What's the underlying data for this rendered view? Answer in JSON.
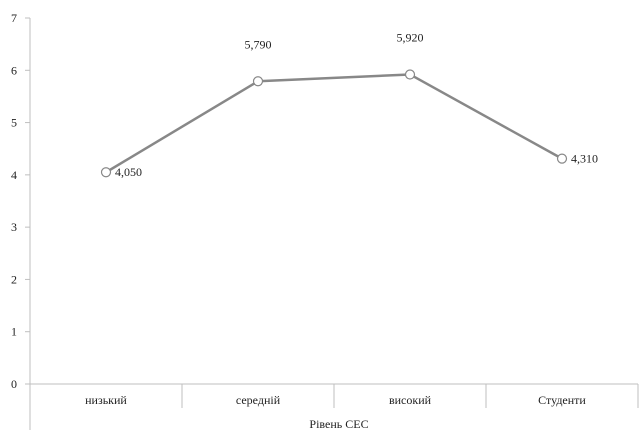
{
  "chart_data": {
    "type": "line",
    "categories": [
      "низький",
      "середній",
      "високий",
      "Студенти"
    ],
    "series": [
      {
        "values": [
          4.05,
          5.79,
          5.92,
          4.31
        ],
        "data_labels": [
          "4,050",
          "5,790",
          "5,920",
          "4,310"
        ]
      }
    ],
    "xlabel": "Рівень СЕС",
    "ylabel": "",
    "ylim": [
      0,
      7
    ],
    "yticks": [
      "0",
      "1",
      "2",
      "3",
      "4",
      "5",
      "6",
      "7"
    ],
    "grid": false,
    "legend": "none",
    "line_color": "#888888",
    "marker_fill": "#ffffff"
  }
}
